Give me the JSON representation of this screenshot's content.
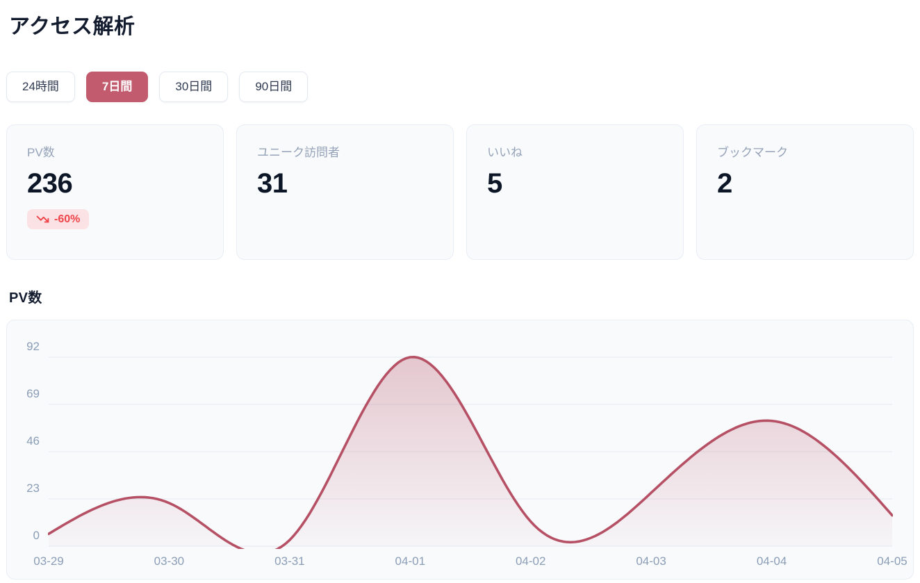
{
  "header": {
    "title": "アクセス解析"
  },
  "tabs": {
    "items": [
      {
        "label": "24時間",
        "active": false
      },
      {
        "label": "7日間",
        "active": true
      },
      {
        "label": "30日間",
        "active": false
      },
      {
        "label": "90日間",
        "active": false
      }
    ]
  },
  "stats": {
    "cards": [
      {
        "label": "PV数",
        "value": "236",
        "badge": {
          "icon": "trending-down-icon",
          "text": "-60%"
        }
      },
      {
        "label": "ユニーク訪問者",
        "value": "31"
      },
      {
        "label": "いいね",
        "value": "5"
      },
      {
        "label": "ブックマーク",
        "value": "2"
      }
    ]
  },
  "chart_section": {
    "title": "PV数"
  },
  "chart_data": {
    "type": "area",
    "title": "PV数",
    "x": [
      "03-29",
      "03-30",
      "03-31",
      "04-01",
      "04-02",
      "04-03",
      "04-04",
      "04-05"
    ],
    "series": [
      {
        "name": "PV数",
        "values": [
          6,
          21,
          3,
          92,
          12,
          26,
          61,
          15
        ]
      }
    ],
    "xlabel": "",
    "ylabel": "",
    "y_ticks": [
      0,
      23,
      46,
      69,
      92
    ],
    "ylim": [
      0,
      92
    ],
    "grid": true,
    "legend": false,
    "curve": "natural-spline",
    "line_color": "#b65065",
    "fill_color": "#b65065",
    "fill_opacity_top": 0.3,
    "fill_opacity_bottom": 0.02,
    "grid_color": "#e3e9f1",
    "axis_label_color": "#8b9db6"
  },
  "colors": {
    "accent_rose": "#c25b6e",
    "badge_bg": "#fbe2e5",
    "badge_text": "#ef4549",
    "card_bg": "#f8fafc",
    "card_border": "#e9edf4",
    "muted_label": "#95a2b8",
    "value_text": "#0c1627"
  }
}
